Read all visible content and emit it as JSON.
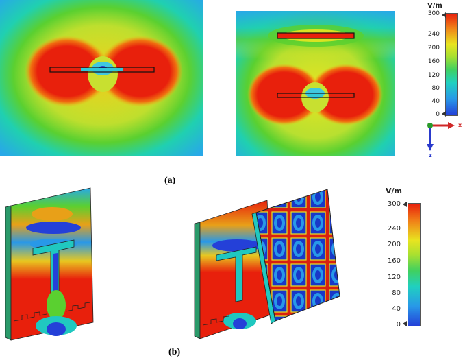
{
  "colors": {
    "low": "#2440d8",
    "mid": "#20d0c0",
    "green": "#5ad030",
    "yellow": "#e8e420",
    "high": "#e8200c",
    "axis_y": "#2a9a2a",
    "axis_x": "#d02828",
    "axis_z": "#2a3acc"
  },
  "panel_a": {
    "caption": "(a)",
    "legend": {
      "unit": "V/m",
      "ticks": [
        "300",
        "240",
        "200",
        "160",
        "120",
        "80",
        "40",
        "0"
      ]
    },
    "axes": {
      "x": "x",
      "y": "y",
      "z": "z"
    }
  },
  "panel_b": {
    "caption": "(b)",
    "legend": {
      "unit": "V/m",
      "ticks": [
        "300",
        "240",
        "200",
        "160",
        "120",
        "80",
        "40",
        "0"
      ]
    }
  }
}
